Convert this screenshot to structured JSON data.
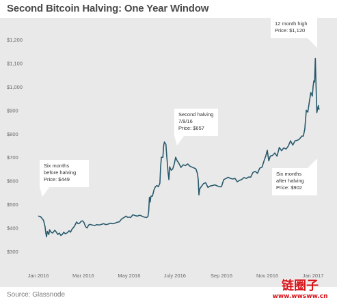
{
  "chart_data": {
    "type": "line",
    "title": "Second Bitcoin Halving: One Year Window",
    "xlabel": "",
    "ylabel": "",
    "ylim": [
      250,
      1300
    ],
    "y_ticks": [
      300,
      400,
      500,
      600,
      700,
      800,
      900,
      1000,
      1100,
      1200
    ],
    "y_tick_labels": [
      "$300",
      "$400",
      "$500",
      "$600",
      "$700",
      "$800",
      "$900",
      "$1,000",
      "$1,100",
      "$1,200"
    ],
    "x_range": [
      "2016-01-01",
      "2017-01-12"
    ],
    "x_ticks": [
      {
        "date": "2016-01-01",
        "label": "Jan 2016"
      },
      {
        "date": "2016-03-01",
        "label": "Mar 2016"
      },
      {
        "date": "2016-05-01",
        "label": "May 2016"
      },
      {
        "date": "2016-07-01",
        "label": "July 2016"
      },
      {
        "date": "2016-09-01",
        "label": "Sep 2016"
      },
      {
        "date": "2016-11-01",
        "label": "Nov 2016"
      },
      {
        "date": "2017-01-01",
        "label": "Jan 2017"
      }
    ],
    "grid": false,
    "series": [
      {
        "name": "",
        "color": "#27596b",
        "points": [
          [
            "2016-01-01",
            450
          ],
          [
            "2016-01-04",
            448
          ],
          [
            "2016-01-06",
            440
          ],
          [
            "2016-01-08",
            432
          ],
          [
            "2016-01-10",
            405
          ],
          [
            "2016-01-11",
            378
          ],
          [
            "2016-01-12",
            362
          ],
          [
            "2016-01-13",
            385
          ],
          [
            "2016-01-15",
            372
          ],
          [
            "2016-01-16",
            392
          ],
          [
            "2016-01-18",
            382
          ],
          [
            "2016-01-20",
            378
          ],
          [
            "2016-01-23",
            390
          ],
          [
            "2016-01-25",
            382
          ],
          [
            "2016-01-27",
            372
          ],
          [
            "2016-01-29",
            378
          ],
          [
            "2016-01-31",
            368
          ],
          [
            "2016-02-02",
            372
          ],
          [
            "2016-02-04",
            382
          ],
          [
            "2016-02-06",
            375
          ],
          [
            "2016-02-09",
            380
          ],
          [
            "2016-02-11",
            388
          ],
          [
            "2016-02-13",
            382
          ],
          [
            "2016-02-15",
            395
          ],
          [
            "2016-02-17",
            402
          ],
          [
            "2016-02-19",
            412
          ],
          [
            "2016-02-21",
            425
          ],
          [
            "2016-02-23",
            418
          ],
          [
            "2016-02-25",
            420
          ],
          [
            "2016-02-27",
            428
          ],
          [
            "2016-02-29",
            430
          ],
          [
            "2016-03-02",
            422
          ],
          [
            "2016-03-04",
            405
          ],
          [
            "2016-03-06",
            400
          ],
          [
            "2016-03-08",
            412
          ],
          [
            "2016-03-10",
            415
          ],
          [
            "2016-03-13",
            412
          ],
          [
            "2016-03-16",
            410
          ],
          [
            "2016-03-19",
            414
          ],
          [
            "2016-03-22",
            412
          ],
          [
            "2016-03-25",
            415
          ],
          [
            "2016-03-28",
            418
          ],
          [
            "2016-03-31",
            414
          ],
          [
            "2016-04-03",
            416
          ],
          [
            "2016-04-06",
            420
          ],
          [
            "2016-04-09",
            418
          ],
          [
            "2016-04-12",
            420
          ],
          [
            "2016-04-15",
            424
          ],
          [
            "2016-04-18",
            426
          ],
          [
            "2016-04-21",
            438
          ],
          [
            "2016-04-24",
            444
          ],
          [
            "2016-04-27",
            450
          ],
          [
            "2016-04-29",
            445
          ],
          [
            "2016-05-01",
            446
          ],
          [
            "2016-05-03",
            444
          ],
          [
            "2016-05-06",
            456
          ],
          [
            "2016-05-09",
            452
          ],
          [
            "2016-05-12",
            450
          ],
          [
            "2016-05-15",
            454
          ],
          [
            "2016-05-18",
            450
          ],
          [
            "2016-05-21",
            446
          ],
          [
            "2016-05-24",
            444
          ],
          [
            "2016-05-26",
            448
          ],
          [
            "2016-05-27",
            470
          ],
          [
            "2016-05-28",
            530
          ],
          [
            "2016-05-29",
            510
          ],
          [
            "2016-05-30",
            535
          ],
          [
            "2016-06-01",
            535
          ],
          [
            "2016-06-03",
            560
          ],
          [
            "2016-06-05",
            575
          ],
          [
            "2016-06-07",
            580
          ],
          [
            "2016-06-09",
            575
          ],
          [
            "2016-06-11",
            590
          ],
          [
            "2016-06-12",
            660
          ],
          [
            "2016-06-13",
            700
          ],
          [
            "2016-06-15",
            700
          ],
          [
            "2016-06-16",
            750
          ],
          [
            "2016-06-17",
            765
          ],
          [
            "2016-06-18",
            760
          ],
          [
            "2016-06-19",
            755
          ],
          [
            "2016-06-20",
            710
          ],
          [
            "2016-06-21",
            672
          ],
          [
            "2016-06-22",
            632
          ],
          [
            "2016-06-23",
            605
          ],
          [
            "2016-06-24",
            660
          ],
          [
            "2016-06-26",
            645
          ],
          [
            "2016-06-28",
            650
          ],
          [
            "2016-06-30",
            670
          ],
          [
            "2016-07-02",
            700
          ],
          [
            "2016-07-04",
            685
          ],
          [
            "2016-07-06",
            676
          ],
          [
            "2016-07-09",
            657
          ],
          [
            "2016-07-12",
            668
          ],
          [
            "2016-07-15",
            665
          ],
          [
            "2016-07-18",
            672
          ],
          [
            "2016-07-21",
            662
          ],
          [
            "2016-07-24",
            658
          ],
          [
            "2016-07-27",
            654
          ],
          [
            "2016-07-29",
            650
          ],
          [
            "2016-07-31",
            630
          ],
          [
            "2016-08-01",
            605
          ],
          [
            "2016-08-02",
            540
          ],
          [
            "2016-08-03",
            565
          ],
          [
            "2016-08-05",
            575
          ],
          [
            "2016-08-08",
            588
          ],
          [
            "2016-08-11",
            592
          ],
          [
            "2016-08-14",
            572
          ],
          [
            "2016-08-17",
            578
          ],
          [
            "2016-08-20",
            580
          ],
          [
            "2016-08-23",
            583
          ],
          [
            "2016-08-26",
            579
          ],
          [
            "2016-08-29",
            575
          ],
          [
            "2016-09-01",
            575
          ],
          [
            "2016-09-04",
            605
          ],
          [
            "2016-09-07",
            610
          ],
          [
            "2016-09-10",
            615
          ],
          [
            "2016-09-13",
            610
          ],
          [
            "2016-09-16",
            608
          ],
          [
            "2016-09-19",
            610
          ],
          [
            "2016-09-22",
            596
          ],
          [
            "2016-09-25",
            602
          ],
          [
            "2016-09-28",
            606
          ],
          [
            "2016-10-01",
            614
          ],
          [
            "2016-10-04",
            610
          ],
          [
            "2016-10-07",
            616
          ],
          [
            "2016-10-10",
            616
          ],
          [
            "2016-10-13",
            636
          ],
          [
            "2016-10-16",
            640
          ],
          [
            "2016-10-19",
            632
          ],
          [
            "2016-10-22",
            654
          ],
          [
            "2016-10-25",
            658
          ],
          [
            "2016-10-28",
            688
          ],
          [
            "2016-10-30",
            705
          ],
          [
            "2016-11-01",
            730
          ],
          [
            "2016-11-03",
            685
          ],
          [
            "2016-11-05",
            705
          ],
          [
            "2016-11-08",
            708
          ],
          [
            "2016-11-11",
            718
          ],
          [
            "2016-11-14",
            705
          ],
          [
            "2016-11-17",
            742
          ],
          [
            "2016-11-20",
            728
          ],
          [
            "2016-11-23",
            740
          ],
          [
            "2016-11-26",
            735
          ],
          [
            "2016-11-29",
            748
          ],
          [
            "2016-12-02",
            770
          ],
          [
            "2016-12-05",
            752
          ],
          [
            "2016-12-08",
            770
          ],
          [
            "2016-12-11",
            772
          ],
          [
            "2016-12-14",
            778
          ],
          [
            "2016-12-17",
            790
          ],
          [
            "2016-12-19",
            790
          ],
          [
            "2016-12-21",
            820
          ],
          [
            "2016-12-23",
            900
          ],
          [
            "2016-12-25",
            892
          ],
          [
            "2016-12-27",
            935
          ],
          [
            "2016-12-29",
            975
          ],
          [
            "2016-12-31",
            960
          ],
          [
            "2017-01-01",
            1000
          ],
          [
            "2017-01-02",
            1025
          ],
          [
            "2017-01-03",
            1020
          ],
          [
            "2017-01-04",
            1120
          ],
          [
            "2017-01-05",
            1000
          ],
          [
            "2017-01-06",
            890
          ],
          [
            "2017-01-07",
            905
          ],
          [
            "2017-01-08",
            920
          ],
          [
            "2017-01-09",
            902
          ]
        ]
      }
    ],
    "annotations": [
      {
        "lines": [
          "Six months",
          "before halving",
          "Price: $449"
        ],
        "date": "2016-01-01",
        "value": 449
      },
      {
        "lines": [
          "Second halving",
          "7/9/16",
          "Price: $657"
        ],
        "date": "2016-07-09",
        "value": 657
      },
      {
        "lines": [
          "12 month high",
          "Price: $1,120"
        ],
        "date": "2017-01-04",
        "value": 1120
      },
      {
        "lines": [
          "Six months",
          "after halving",
          "Price: $902"
        ],
        "date": "2017-01-09",
        "value": 902
      }
    ],
    "source": "Source: Glassnode"
  },
  "watermark": {
    "text": "链圈子",
    "url": "www.wwsww.cn"
  }
}
